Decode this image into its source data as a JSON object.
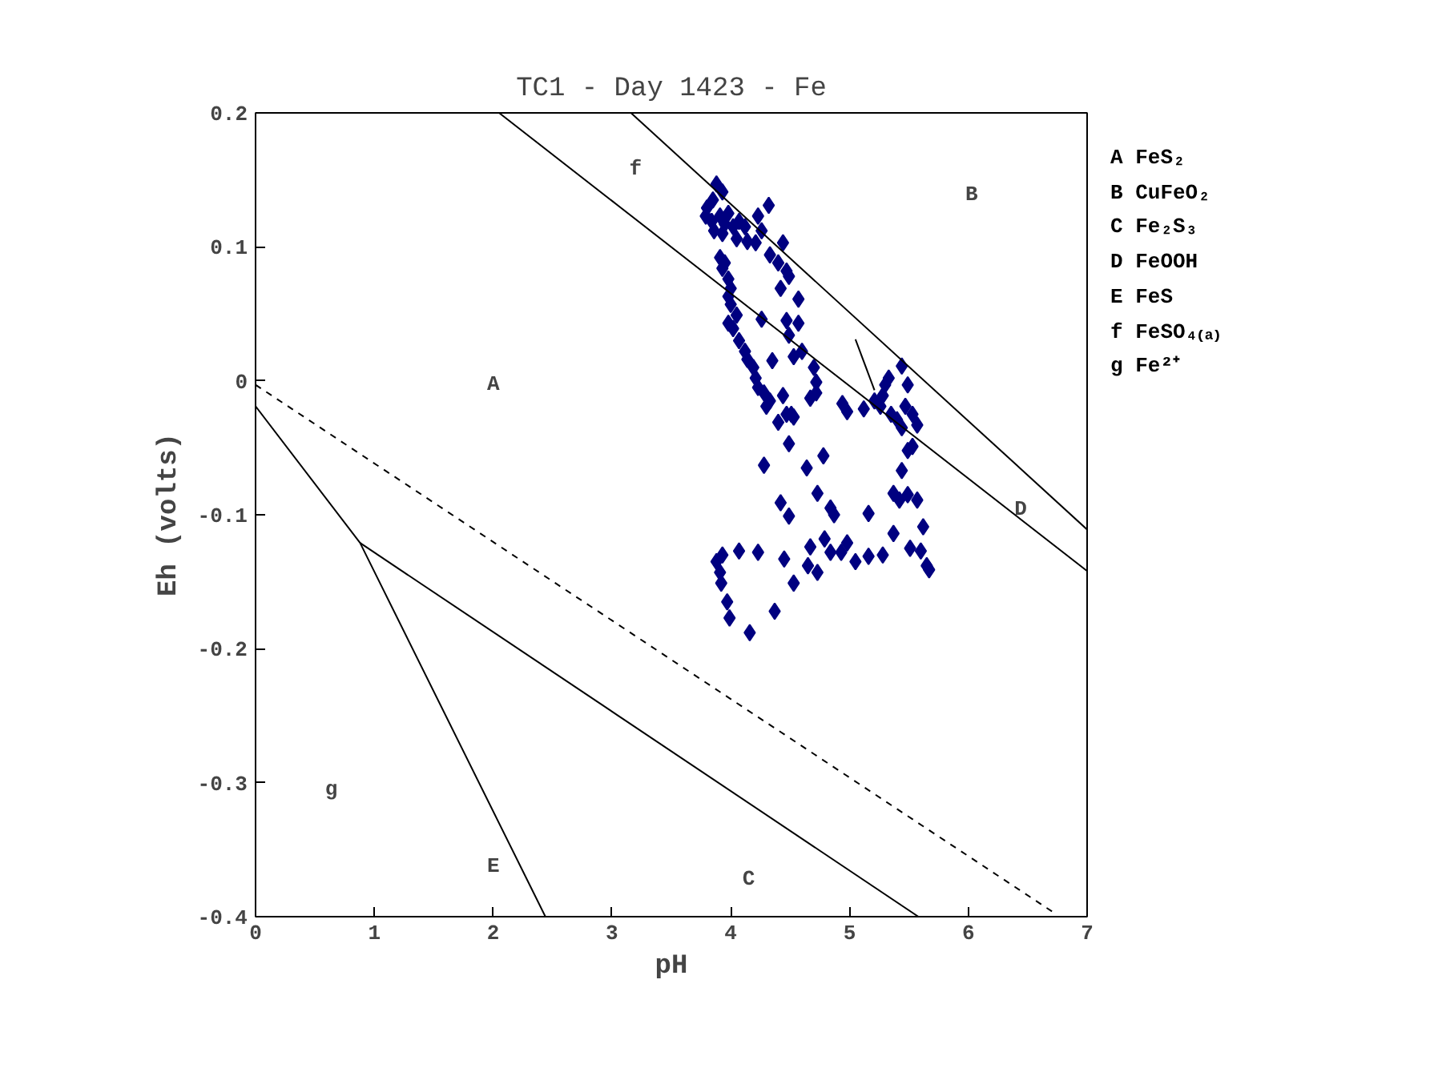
{
  "chart_data": {
    "type": "scatter",
    "title": "TC1 - Day 1423 - Fe",
    "xlabel": "pH",
    "ylabel": "Eh (volts)",
    "xlim": [
      0,
      7
    ],
    "ylim": [
      -0.4,
      0.2
    ],
    "xticks": [
      0,
      1,
      2,
      3,
      4,
      5,
      6,
      7
    ],
    "yticks": [
      -0.4,
      -0.3,
      -0.2,
      -0.1,
      0,
      0.1,
      0.2
    ],
    "grid": false,
    "series": [
      {
        "marker": "diamond",
        "color": "#000080",
        "x": [
          3.88,
          3.93,
          3.85,
          3.8,
          3.79,
          3.84,
          3.91,
          3.98,
          3.95,
          3.86,
          3.93,
          4.02,
          4.07,
          4.12,
          4.05,
          4.14,
          4.21,
          4.26,
          4.23,
          4.32,
          4.44,
          4.33,
          4.4,
          4.47,
          4.49,
          4.42,
          4.57,
          3.91,
          3.95,
          3.93,
          3.98,
          4.0,
          3.98,
          4.0,
          4.05,
          3.98,
          4.02,
          4.26,
          4.47,
          4.57,
          4.07,
          4.12,
          4.14,
          4.19,
          4.21,
          4.23,
          4.28,
          4.33,
          4.3,
          4.49,
          4.35,
          4.53,
          4.6,
          4.7,
          4.72,
          4.72,
          4.67,
          4.44,
          4.4,
          4.47,
          4.51,
          4.53,
          4.49,
          4.94,
          4.98,
          5.12,
          5.21,
          5.28,
          5.3,
          5.33,
          5.26,
          5.35,
          5.4,
          5.44,
          5.44,
          5.49,
          5.47,
          5.53,
          5.57,
          5.53,
          5.49,
          4.28,
          4.64,
          4.78,
          4.73,
          4.84,
          4.87,
          4.42,
          4.49,
          5.16,
          5.44,
          5.37,
          5.42,
          5.49,
          5.57,
          5.62,
          5.37,
          4.79,
          4.67,
          4.84,
          4.93,
          4.98,
          5.05,
          5.16,
          5.28,
          5.51,
          5.6,
          5.65,
          5.67,
          4.45,
          4.65,
          4.73,
          4.53,
          4.23,
          4.07,
          3.93,
          3.88,
          3.91,
          3.92,
          3.97,
          3.99,
          4.16,
          4.37
        ],
        "values": [
          0.147,
          0.141,
          0.135,
          0.129,
          0.123,
          0.119,
          0.123,
          0.125,
          0.117,
          0.112,
          0.11,
          0.115,
          0.119,
          0.115,
          0.106,
          0.104,
          0.103,
          0.112,
          0.123,
          0.131,
          0.103,
          0.094,
          0.088,
          0.082,
          0.078,
          0.069,
          0.061,
          0.092,
          0.088,
          0.084,
          0.076,
          0.069,
          0.063,
          0.057,
          0.049,
          0.043,
          0.039,
          0.046,
          0.045,
          0.043,
          0.03,
          0.022,
          0.016,
          0.01,
          0.002,
          -0.005,
          -0.009,
          -0.015,
          -0.019,
          0.034,
          0.015,
          0.018,
          0.022,
          0.01,
          -0.001,
          -0.009,
          -0.013,
          -0.011,
          -0.031,
          -0.025,
          -0.025,
          -0.027,
          -0.047,
          -0.017,
          -0.023,
          -0.021,
          -0.015,
          -0.011,
          -0.003,
          0.002,
          -0.019,
          -0.025,
          -0.029,
          -0.035,
          0.011,
          -0.003,
          -0.019,
          -0.025,
          -0.033,
          -0.049,
          -0.052,
          -0.063,
          -0.065,
          -0.056,
          -0.084,
          -0.095,
          -0.1,
          -0.091,
          -0.101,
          -0.099,
          -0.067,
          -0.084,
          -0.089,
          -0.085,
          -0.089,
          -0.109,
          -0.114,
          -0.118,
          -0.124,
          -0.128,
          -0.128,
          -0.121,
          -0.135,
          -0.131,
          -0.13,
          -0.125,
          -0.127,
          -0.138,
          -0.141,
          -0.133,
          -0.138,
          -0.143,
          -0.151,
          -0.128,
          -0.127,
          -0.13,
          -0.135,
          -0.143,
          -0.151,
          -0.165,
          -0.177,
          -0.188,
          -0.172
        ]
      },
      {
        "type": "line",
        "color": "#000000",
        "x": [
          2.05,
          7
        ],
        "values": [
          0.2,
          -0.142
        ]
      },
      {
        "type": "line",
        "color": "#000000",
        "x": [
          3.16,
          7
        ],
        "values": [
          0.2,
          -0.111
        ]
      },
      {
        "type": "line",
        "color": "#000000",
        "x": [
          5.05,
          5.21
        ],
        "values": [
          0.031,
          -0.007
        ]
      },
      {
        "type": "line",
        "color": "#000000",
        "line_style": "dashed",
        "x": [
          0,
          6.72
        ],
        "values": [
          -0.003,
          -0.397
        ]
      },
      {
        "type": "line",
        "color": "#000000",
        "x": [
          0,
          0.88,
          2.44
        ],
        "values": [
          -0.019,
          -0.121,
          -0.4
        ]
      },
      {
        "type": "line",
        "color": "#000000",
        "x": [
          0.88,
          5.58
        ],
        "values": [
          -0.121,
          -0.4
        ]
      }
    ],
    "annotations": [
      "A",
      "B",
      "C",
      "D",
      "E",
      "f",
      "g",
      "A FeS₂",
      "B CuFeO₂",
      "C Fe₂S₃",
      "D FeOOH",
      "E FeS",
      "f FeSO₄₍ₐ₎",
      "g Fe²⁺"
    ]
  }
}
